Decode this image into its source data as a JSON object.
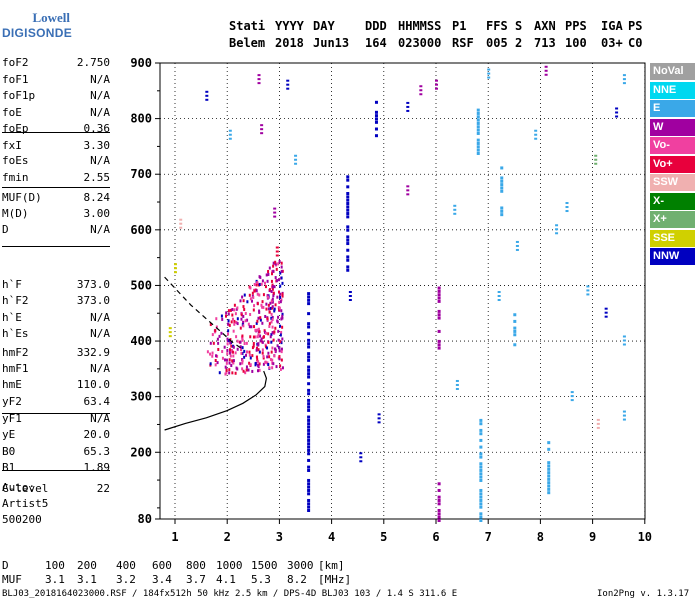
{
  "logo": {
    "line1": "Lowell",
    "line2": "DIGISONDE"
  },
  "header": {
    "cols": [
      {
        "h": "Stati",
        "v": "Belem"
      },
      {
        "h": "YYYY",
        "v": "2018"
      },
      {
        "h": "DAY",
        "v": "Jun13"
      },
      {
        "h": "DDD",
        "v": "164"
      },
      {
        "h": "HHMMSS",
        "v": "023000"
      },
      {
        "h": "P1",
        "v": "RSF"
      },
      {
        "h": "FFS",
        "v": "005"
      },
      {
        "h": "S",
        "v": "2"
      },
      {
        "h": "AXN",
        "v": "713"
      },
      {
        "h": "PPS",
        "v": "100"
      },
      {
        "h": "IGA",
        "v": "03+"
      },
      {
        "h": "PS",
        "v": "C0"
      }
    ]
  },
  "params": [
    {
      "n": "foF2",
      "v": "2.750"
    },
    {
      "n": "foF1",
      "v": "N/A"
    },
    {
      "n": "foF1p",
      "v": "N/A"
    },
    {
      "n": "foE",
      "v": "N/A"
    },
    {
      "n": "foEp",
      "v": "0.36"
    },
    {
      "n": "fxI",
      "v": "3.30"
    },
    {
      "n": "foEs",
      "v": "N/A"
    },
    {
      "n": "fmin",
      "v": "2.55"
    },
    {
      "n": "MUF(D)",
      "v": "8.24"
    },
    {
      "n": "M(D)",
      "v": "3.00"
    },
    {
      "n": "D",
      "v": "N/A"
    },
    {
      "n": "h`F",
      "v": "373.0"
    },
    {
      "n": "h`F2",
      "v": "373.0"
    },
    {
      "n": "h`E",
      "v": "N/A"
    },
    {
      "n": "h`Es",
      "v": "N/A"
    },
    {
      "n": "hmF2",
      "v": "332.9"
    },
    {
      "n": "hmF1",
      "v": "N/A"
    },
    {
      "n": "hmE",
      "v": "110.0"
    },
    {
      "n": "yF2",
      "v": "63.4"
    },
    {
      "n": "yF1",
      "v": "N/A"
    },
    {
      "n": "yE",
      "v": "20.0"
    },
    {
      "n": "B0",
      "v": "65.3"
    },
    {
      "n": "B1",
      "v": "1.89"
    },
    {
      "n": "C-level",
      "v": "22"
    }
  ],
  "extra": {
    "auto": "Auto:",
    "artist": "Artist5",
    "version": "500200"
  },
  "legend": [
    {
      "label": "NoVal",
      "color": "#a0a0a0"
    },
    {
      "label": "NNE",
      "color": "#00d8f0"
    },
    {
      "label": "E",
      "color": "#3aa8e8"
    },
    {
      "label": "W",
      "color": "#a000a0"
    },
    {
      "label": "Vo-",
      "color": "#f040a0"
    },
    {
      "label": "Vo+",
      "color": "#e8003c"
    },
    {
      "label": "SSW",
      "color": "#f0b0b0"
    },
    {
      "label": "X-",
      "color": "#008000"
    },
    {
      "label": "X+",
      "color": "#70b070"
    },
    {
      "label": "SSE",
      "color": "#d0d000"
    },
    {
      "label": "NNW",
      "color": "#0000c0"
    }
  ],
  "footer": {
    "d_label": "D",
    "d_values": [
      "100",
      "200",
      "400",
      "600",
      "800",
      "1000",
      "1500",
      "3000"
    ],
    "d_unit": "[km]",
    "muf_label": "MUF",
    "muf_values": [
      "3.1",
      "3.1",
      "3.2",
      "3.4",
      "3.7",
      "4.1",
      "5.3",
      "8.2"
    ],
    "muf_unit": "[MHz]",
    "file_info": "BLJ03_2018164023000.RSF / 184fx512h 50 kHz 2.5 km / DPS-4D BLJ03 103 / 1.4 S 311.6 E",
    "program": "Ion2Png v. 1.3.17"
  },
  "chart_data": {
    "type": "scatter",
    "title": "",
    "xlabel": "",
    "ylabel": "",
    "xlim": [
      0.8,
      10.0
    ],
    "ylim": [
      80,
      900
    ],
    "xticks": [
      "1",
      "2",
      "3",
      "4",
      "5",
      "6",
      "7",
      "8",
      "9",
      "10"
    ],
    "yticks": [
      "80",
      "200",
      "300",
      "400",
      "500",
      "600",
      "700",
      "800",
      "900"
    ],
    "curves": [
      {
        "name": "profile",
        "style": "solid",
        "x": [
          0.8,
          1.2,
          1.6,
          2.0,
          2.3,
          2.55,
          2.72,
          2.75,
          2.7
        ],
        "y": [
          240,
          252,
          262,
          275,
          288,
          303,
          318,
          333,
          346
        ]
      },
      {
        "name": "trace",
        "style": "dashed",
        "x": [
          0.8,
          1.0,
          1.3,
          1.6,
          1.9,
          2.1,
          2.3
        ],
        "y": [
          515,
          495,
          465,
          440,
          415,
          398,
          385
        ]
      }
    ],
    "columns": [
      {
        "x": 3.55,
        "y0": 80,
        "y1": 500,
        "series": "NNW"
      },
      {
        "x": 4.3,
        "y0": 530,
        "y1": 700,
        "series": "NNW"
      },
      {
        "x": 4.85,
        "y0": 760,
        "y1": 840,
        "series": "NNW"
      },
      {
        "x": 6.05,
        "y0": 390,
        "y1": 500,
        "series": "W"
      },
      {
        "x": 6.05,
        "y0": 80,
        "y1": 150,
        "series": "W"
      },
      {
        "x": 6.8,
        "y0": 740,
        "y1": 820,
        "series": "E"
      },
      {
        "x": 7.25,
        "y0": 630,
        "y1": 720,
        "series": "E"
      },
      {
        "x": 6.85,
        "y0": 80,
        "y1": 260,
        "series": "E"
      },
      {
        "x": 7.5,
        "y0": 390,
        "y1": 450,
        "series": "E"
      },
      {
        "x": 8.15,
        "y0": 130,
        "y1": 220,
        "series": "E"
      }
    ],
    "points": [
      {
        "x": 1.6,
        "y": 850,
        "series": "NNW"
      },
      {
        "x": 2.05,
        "y": 780,
        "series": "E"
      },
      {
        "x": 2.6,
        "y": 880,
        "series": "W"
      },
      {
        "x": 2.65,
        "y": 790,
        "series": "W"
      },
      {
        "x": 3.15,
        "y": 870,
        "series": "NNW"
      },
      {
        "x": 3.3,
        "y": 735,
        "series": "E"
      },
      {
        "x": 5.45,
        "y": 830,
        "series": "NNW"
      },
      {
        "x": 5.45,
        "y": 680,
        "series": "W"
      },
      {
        "x": 5.7,
        "y": 860,
        "series": "W"
      },
      {
        "x": 6.0,
        "y": 870,
        "series": "W"
      },
      {
        "x": 6.35,
        "y": 645,
        "series": "E"
      },
      {
        "x": 6.4,
        "y": 330,
        "series": "E"
      },
      {
        "x": 7.0,
        "y": 890,
        "series": "E"
      },
      {
        "x": 7.9,
        "y": 780,
        "series": "E"
      },
      {
        "x": 8.1,
        "y": 895,
        "series": "W"
      },
      {
        "x": 8.5,
        "y": 650,
        "series": "E"
      },
      {
        "x": 8.9,
        "y": 500,
        "series": "E"
      },
      {
        "x": 9.05,
        "y": 735,
        "series": "X+"
      },
      {
        "x": 9.25,
        "y": 460,
        "series": "NNW"
      },
      {
        "x": 9.45,
        "y": 820,
        "series": "NNW"
      },
      {
        "x": 9.6,
        "y": 880,
        "series": "E"
      },
      {
        "x": 9.6,
        "y": 410,
        "series": "E"
      },
      {
        "x": 9.1,
        "y": 260,
        "series": "SSW"
      },
      {
        "x": 9.6,
        "y": 275,
        "series": "E"
      },
      {
        "x": 8.6,
        "y": 310,
        "series": "E"
      },
      {
        "x": 7.2,
        "y": 490,
        "series": "E"
      },
      {
        "x": 1.0,
        "y": 540,
        "series": "SSE"
      },
      {
        "x": 0.9,
        "y": 425,
        "series": "SSE"
      },
      {
        "x": 1.1,
        "y": 620,
        "series": "SSW"
      },
      {
        "x": 4.35,
        "y": 490,
        "series": "NNW"
      },
      {
        "x": 4.55,
        "y": 200,
        "series": "NNW"
      },
      {
        "x": 4.9,
        "y": 270,
        "series": "NNW"
      },
      {
        "x": 2.9,
        "y": 640,
        "series": "W"
      },
      {
        "x": 2.95,
        "y": 570,
        "series": "Vo+"
      },
      {
        "x": 8.3,
        "y": 610,
        "series": "E"
      },
      {
        "x": 7.55,
        "y": 580,
        "series": "E"
      }
    ],
    "cluster": {
      "x0": 1.6,
      "x1": 3.05,
      "y0": 340,
      "y1": 560,
      "series": [
        "W",
        "Vo-",
        "Vo+",
        "NNW",
        "X-",
        "SSE",
        "E"
      ]
    }
  }
}
